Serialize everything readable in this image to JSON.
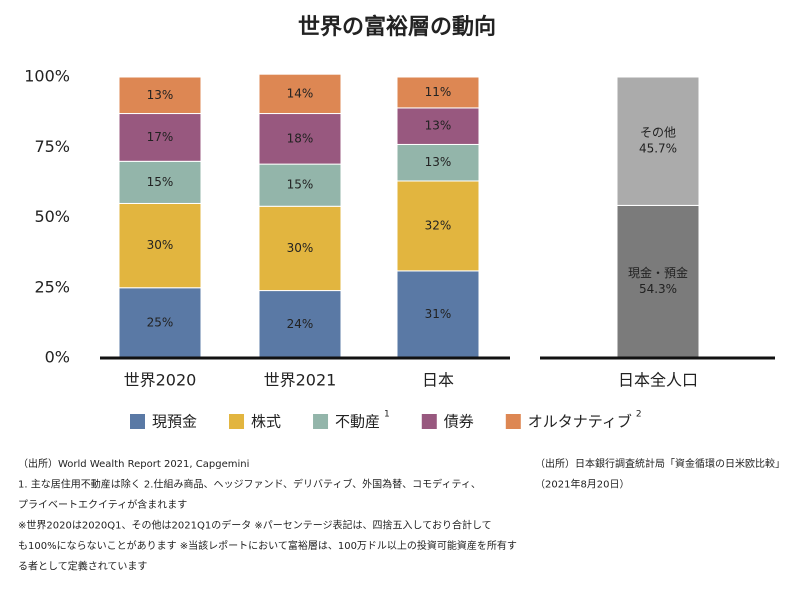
{
  "title": "世界の富裕層の動向",
  "chart_data": [
    {
      "type": "stacked-bar",
      "categories": [
        "世界2020",
        "世界2021",
        "日本"
      ],
      "series": [
        {
          "name": "現預金",
          "color": "#5a79a5",
          "values": [
            25,
            24,
            31
          ],
          "value_labels": [
            "25%",
            "24%",
            "31%"
          ]
        },
        {
          "name": "株式",
          "color": "#e2b53f",
          "values": [
            30,
            30,
            32
          ],
          "value_labels": [
            "30%",
            "30%",
            "32%"
          ]
        },
        {
          "name": "不動産",
          "footnote_mark": "1",
          "color": "#93b5aa",
          "values": [
            15,
            15,
            13
          ],
          "value_labels": [
            "15%",
            "15%",
            "13%"
          ]
        },
        {
          "name": "債券",
          "color": "#98587f",
          "values": [
            17,
            18,
            13
          ],
          "value_labels": [
            "17%",
            "18%",
            "13%"
          ]
        },
        {
          "name": "オルタナティブ",
          "footnote_mark": "2",
          "color": "#dd8753",
          "values": [
            13,
            14,
            11
          ],
          "value_labels": [
            "13%",
            "14%",
            "11%"
          ]
        }
      ],
      "ylim": [
        0,
        100
      ],
      "yticks": [
        {
          "value": 0,
          "label": "0%"
        },
        {
          "value": 25,
          "label": "25%"
        },
        {
          "value": 50,
          "label": "50%"
        },
        {
          "value": 75,
          "label": "75%"
        },
        {
          "value": 100,
          "label": "100%"
        }
      ],
      "legend": "bottom"
    },
    {
      "type": "stacked-bar-inner-labels",
      "categories": [
        "日本全人口"
      ],
      "series": [
        {
          "name": "現金・預金",
          "color": "#7b7b7b",
          "values": [
            54.3
          ],
          "value_labels": [
            "54.3%"
          ]
        },
        {
          "name": "その他",
          "color": "#ababab",
          "values": [
            45.7
          ],
          "value_labels": [
            "45.7%"
          ]
        }
      ],
      "ylim": [
        0,
        100
      ]
    }
  ],
  "notes": {
    "left": [
      "（出所）World Wealth Report 2021, Capgemini",
      "1. 主な居住用不動産は除く 2.仕組み商品、ヘッジファンド、デリバティブ、外国為替、コモディティ、",
      "プライベートエクイティが含まれます",
      "※世界2020は2020Q1、その他は2021Q1のデータ ※パーセンテージ表記は、四捨五入しており合計して",
      "も100%にならないことがあります ※当該レポートにおいて富裕層は、100万ドル以上の投資可能資産を所有す",
      "る者として定義されています"
    ],
    "right": [
      "（出所）日本銀行調査統計局「資金循環の日米欧比較」",
      "（2021年8月20日）"
    ]
  }
}
